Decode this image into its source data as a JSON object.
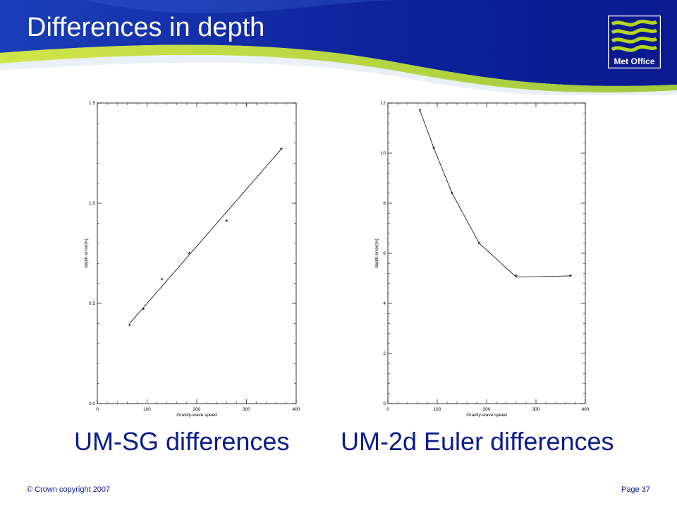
{
  "slide": {
    "title": "Differences in depth",
    "logo_text": "Met Office",
    "footer_copyright": "© Crown copyright 2007",
    "footer_page": "Page 37",
    "colors": {
      "header_dark": "#0b1a8f",
      "header_light": "#1e49c4",
      "swoosh_green": "#b7d51c",
      "text_blue": "#0a1c8c"
    }
  },
  "captions": {
    "left": "UM-SG differences",
    "right": "UM-2d Euler differences"
  },
  "chart_data": [
    {
      "type": "line",
      "marker": "asterisk",
      "xlabel": "Gravity-wave speed",
      "ylabel": "depth error(m)",
      "xlim": [
        0,
        400
      ],
      "ylim": [
        0,
        1.5
      ],
      "xticks": [
        "0",
        "100",
        "200",
        "300",
        "400"
      ],
      "yticks": [
        "0.0",
        "0.5",
        "1.0",
        "1.5"
      ],
      "ytick_values": [
        0,
        0.5,
        1.0,
        1.5
      ],
      "markers": {
        "x": [
          65,
          93,
          130,
          185,
          260,
          370
        ],
        "y": [
          0.39,
          0.47,
          0.62,
          0.75,
          0.91,
          1.27
        ]
      },
      "line": {
        "x": [
          65,
          370
        ],
        "y": [
          0.4,
          1.27
        ]
      }
    },
    {
      "type": "line",
      "marker": "asterisk",
      "xlabel": "Gravity-wave speed",
      "ylabel": "depth error(m)",
      "xlim": [
        0,
        400
      ],
      "ylim": [
        0,
        12
      ],
      "xticks": [
        "0",
        "100",
        "200",
        "300",
        "400"
      ],
      "yticks": [
        "0",
        "2",
        "4",
        "6",
        "8",
        "10",
        "12"
      ],
      "ytick_values": [
        0,
        2,
        4,
        6,
        8,
        10,
        12
      ],
      "markers": {
        "x": [
          65,
          93,
          130,
          185,
          260,
          370
        ],
        "y": [
          11.7,
          10.2,
          8.4,
          6.4,
          5.1,
          5.1
        ]
      },
      "line": {
        "x": [
          65,
          93,
          130,
          185,
          260,
          370
        ],
        "y": [
          11.7,
          10.2,
          8.4,
          6.4,
          5.05,
          5.1
        ]
      }
    }
  ]
}
